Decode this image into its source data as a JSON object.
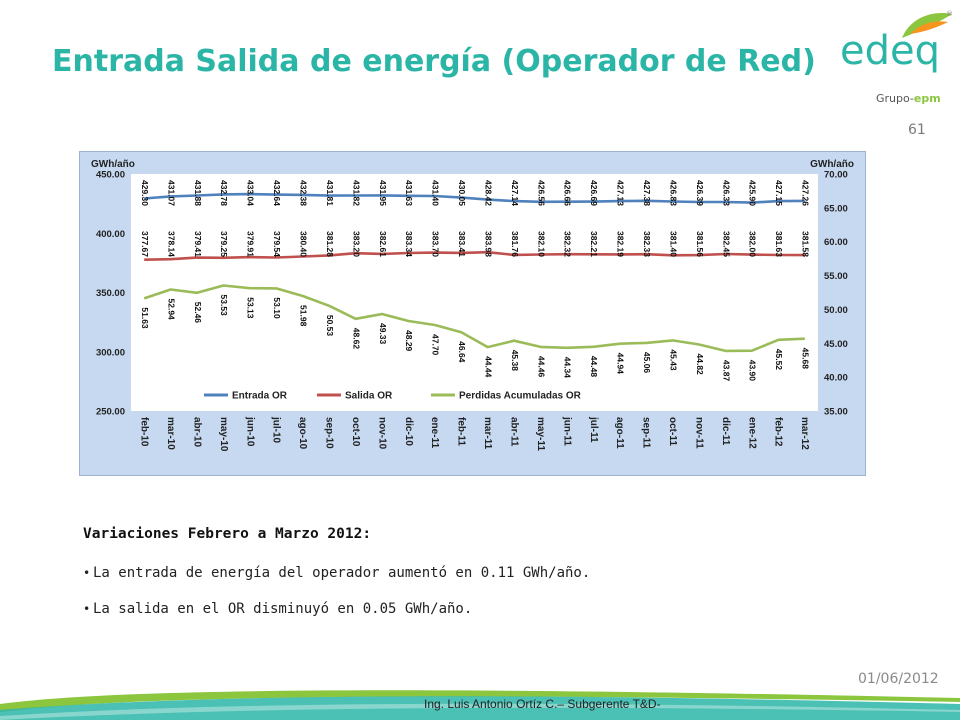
{
  "slide": {
    "title": "Entrada Salida de energía (Operador de Red)",
    "page_number": "61",
    "date": "01/06/2012",
    "footer": "Ing. Luis Antonio Ortíz C.– Subgerente T&D-",
    "logo": {
      "name": "edeq",
      "sub": "Grupo-epm",
      "sub_prefix": "Grupo-",
      "sub_brand": "epm",
      "reg_mark": "®"
    }
  },
  "colors": {
    "title": "#2bb5a7",
    "chart_bg": "#c6d9f1",
    "entrada": "#4f81bd",
    "salida": "#c0504d",
    "perdidas": "#9bbb59"
  },
  "summary": {
    "heading": "Variaciones Febrero a Marzo 2012:",
    "bullets": [
      "La entrada de energía del operador aumentó en  0.11 GWh/año.",
      "La salida en el OR disminuyó en 0.05 GWh/año."
    ]
  },
  "chart_data": {
    "type": "line",
    "title": "",
    "ylabel_left": "GWh/año",
    "ylabel_right": "GWh/año",
    "ylim_left": [
      250,
      450
    ],
    "yticks_left": [
      "250.00",
      "300.00",
      "350.00",
      "400.00",
      "450.00"
    ],
    "ylim_right": [
      35,
      70
    ],
    "yticks_right": [
      "35.00",
      "40.00",
      "45.00",
      "50.00",
      "55.00",
      "60.00",
      "65.00",
      "70.00"
    ],
    "grid": false,
    "legend_position": "bottom",
    "categories": [
      "feb-10",
      "mar-10",
      "abr-10",
      "may-10",
      "jun-10",
      "jul-10",
      "ago-10",
      "sep-10",
      "oct-10",
      "nov-10",
      "dic-10",
      "ene-11",
      "feb-11",
      "mar-11",
      "abr-11",
      "may-11",
      "jun-11",
      "jul-11",
      "ago-11",
      "sep-11",
      "oct-11",
      "nov-11",
      "dic-11",
      "ene-12",
      "feb-12",
      "mar-12"
    ],
    "series": [
      {
        "name": "Entrada OR",
        "axis": "left",
        "values": [
          429.3,
          431.07,
          431.88,
          432.78,
          433.04,
          432.64,
          432.38,
          431.81,
          431.82,
          431.95,
          431.63,
          431.4,
          430.05,
          428.42,
          427.14,
          426.56,
          426.66,
          426.69,
          427.13,
          427.38,
          426.83,
          426.39,
          426.33,
          425.9,
          427.15,
          427.26
        ],
        "labels": [
          "429.30",
          "431.07",
          "431.88",
          "432.78",
          "433.04",
          "432.64",
          "432.38",
          "431.81",
          "431.82",
          "431.95",
          "431.63",
          "431.40",
          "430.05",
          "428.42",
          "427.14",
          "426.56",
          "426.66",
          "426.69",
          "427.13",
          "427.38",
          "426.83",
          "426.39",
          "426.33",
          "425.90",
          "427.15",
          "427.26"
        ]
      },
      {
        "name": "Salida OR",
        "axis": "left",
        "values": [
          377.67,
          378.14,
          379.41,
          379.25,
          379.91,
          379.54,
          380.4,
          381.28,
          383.2,
          382.61,
          383.34,
          383.7,
          383.41,
          383.98,
          381.76,
          382.1,
          382.32,
          382.21,
          382.19,
          382.33,
          381.4,
          381.56,
          382.45,
          382.0,
          381.63,
          381.58
        ],
        "labels": [
          "377.67",
          "378.14",
          "379.41",
          "379.25",
          "379.91",
          "379.54",
          "380.40",
          "381.28",
          "383.20",
          "382.61",
          "383.34",
          "383.70",
          "383.41",
          "383.98",
          "381.76",
          "382.10",
          "382.32",
          "382.21",
          "382.19",
          "382.33",
          "381.40",
          "381.56",
          "382.45",
          "382.00",
          "381.63",
          "381.58"
        ]
      },
      {
        "name": "Perdidas Acumuladas OR",
        "axis": "right",
        "values": [
          51.63,
          52.94,
          52.46,
          53.53,
          53.13,
          53.1,
          51.98,
          50.53,
          48.62,
          49.33,
          48.29,
          47.7,
          46.64,
          44.44,
          45.38,
          44.46,
          44.34,
          44.48,
          44.94,
          45.06,
          45.43,
          44.82,
          43.87,
          43.9,
          45.52,
          45.68
        ],
        "labels": [
          "51.63",
          "52.94",
          "52.46",
          "53.53",
          "53.13",
          "53.10",
          "51.98",
          "50.53",
          "48.62",
          "49.33",
          "48.29",
          "47.70",
          "46.64",
          "44.44",
          "45.38",
          "44.46",
          "44.34",
          "44.48",
          "44.94",
          "45.06",
          "45.43",
          "44.82",
          "43.87",
          "43.90",
          "45.52",
          "45.68"
        ]
      }
    ]
  }
}
